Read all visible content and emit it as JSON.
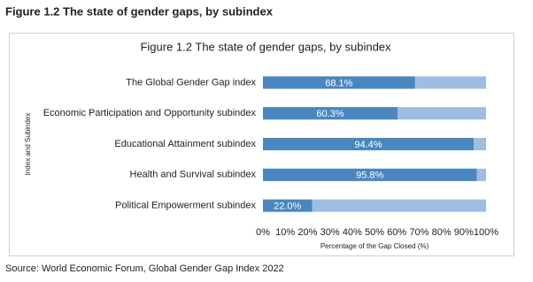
{
  "header": {
    "title": "Figure 1.2 The state of gender gaps, by subindex"
  },
  "chart_data": {
    "type": "bar",
    "orientation": "horizontal",
    "title": "Figure 1.2 The state of gender gaps, by subindex",
    "categories": [
      "The Global Gender Gap index",
      "Economic Participation and Opportunity subindex",
      "Educational Attainment subindex",
      "Health and Survival subindex",
      "Political Empowerment subindex"
    ],
    "values": [
      68.1,
      60.3,
      94.4,
      95.8,
      22.0
    ],
    "value_labels": [
      "68.1%",
      "60.3%",
      "94.4%",
      "95.8%",
      "22.0%"
    ],
    "color": "#4a86c0",
    "track_color": "#9dbde3",
    "xlim": [
      0,
      100
    ],
    "xticks": [
      {
        "value": 0,
        "label": "0%"
      },
      {
        "value": 10,
        "label": "10%"
      },
      {
        "value": 20,
        "label": "20%"
      },
      {
        "value": 30,
        "label": "30%"
      },
      {
        "value": 40,
        "label": "40%"
      },
      {
        "value": 50,
        "label": "50%"
      },
      {
        "value": 60,
        "label": "60%"
      },
      {
        "value": 70,
        "label": "70%"
      },
      {
        "value": 80,
        "label": "80%"
      },
      {
        "value": 90,
        "label": "90%"
      },
      {
        "value": 100,
        "label": "100%"
      }
    ],
    "xlabel": "Percentage of the Gap Closed  (%)",
    "ylabel": "Index and Subindex"
  },
  "footer": {
    "source": "Source: World Economic Forum, Global Gender Gap Index 2022"
  }
}
